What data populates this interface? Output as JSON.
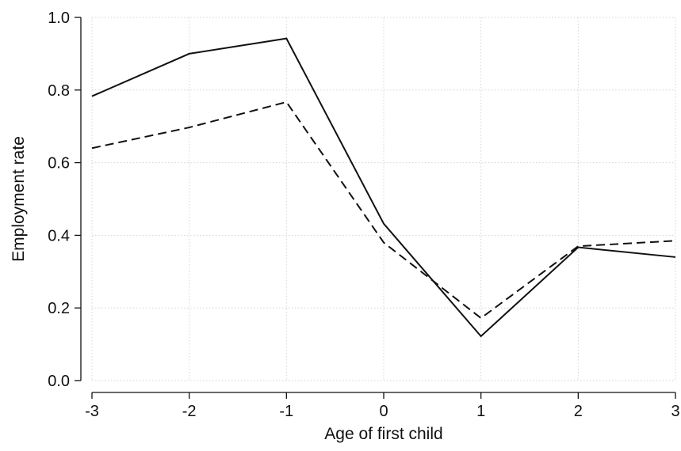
{
  "chart_data": {
    "type": "line",
    "title": "",
    "xlabel": "Age of first child",
    "ylabel": "Employment rate",
    "x": [
      -3,
      -2,
      -1,
      0,
      1,
      2,
      3
    ],
    "xlim": [
      -3,
      3
    ],
    "ylim": [
      0,
      1
    ],
    "xticks": [
      -3,
      -2,
      -1,
      0,
      1,
      2,
      3
    ],
    "yticks": [
      0,
      0.2,
      0.4,
      0.6,
      0.8,
      1.0
    ],
    "xtick_labels": [
      "-3",
      "-2",
      "-1",
      "0",
      "1",
      "2",
      "3"
    ],
    "ytick_labels": [
      "0.0",
      "0.2",
      "0.4",
      "0.6",
      "0.8",
      "1.0"
    ],
    "grid": true,
    "legend": "none",
    "series": [
      {
        "line_style": "solid",
        "color": "#111111",
        "values": [
          0.783,
          0.9,
          0.942,
          0.432,
          0.122,
          0.367,
          0.34
        ]
      },
      {
        "line_style": "dashed",
        "color": "#111111",
        "values": [
          0.64,
          0.697,
          0.767,
          0.38,
          0.172,
          0.37,
          0.385
        ]
      }
    ]
  }
}
